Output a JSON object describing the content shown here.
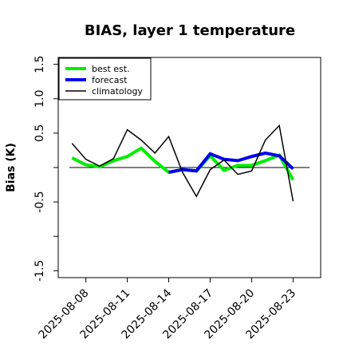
{
  "chart_data": {
    "type": "line",
    "title": "BIAS, layer 1 temperature",
    "xlabel": "",
    "ylabel": "Bias (K)",
    "ylim": [
      -1.6,
      1.6
    ],
    "yticks": [
      -1.5,
      -1.0,
      -0.5,
      0.0,
      0.5,
      1.0,
      1.5
    ],
    "ytick_labels": [
      "-1.5",
      "",
      "-0.5",
      "",
      "0.5",
      "1.0",
      "1.5"
    ],
    "xlim": [
      0,
      19
    ],
    "xticks": [
      {
        "pos": 2,
        "label": "2025-08-08",
        "color": "#000000"
      },
      {
        "pos": 5,
        "label": "2025-08-11",
        "color": "#000000"
      },
      {
        "pos": 8,
        "label": "2025-08-14",
        "color": "#228B22"
      },
      {
        "pos": 11,
        "label": "2025-08-17",
        "color": "#000000"
      },
      {
        "pos": 14,
        "label": "2025-08-20",
        "color": "#000000"
      },
      {
        "pos": 17,
        "label": "2025-08-23",
        "color": "#000000"
      }
    ],
    "series": [
      {
        "name": "best est.",
        "color": "#00ee00",
        "width": 4,
        "x": [
          1,
          2,
          3,
          4,
          5,
          6,
          7,
          8,
          9,
          10,
          11,
          12,
          13,
          14,
          15,
          16,
          17
        ],
        "values": [
          0.14,
          0.04,
          0.01,
          0.1,
          0.16,
          0.28,
          0.09,
          -0.07,
          -0.03,
          -0.05,
          0.17,
          -0.04,
          0.03,
          0.03,
          0.1,
          0.18,
          -0.18
        ]
      },
      {
        "name": "forecast",
        "color": "#0000ee",
        "width": 4,
        "x": [
          8,
          9,
          10,
          11,
          12,
          13,
          14,
          15,
          16,
          17
        ],
        "values": [
          -0.07,
          -0.03,
          -0.05,
          0.2,
          0.12,
          0.1,
          0.16,
          0.21,
          0.17,
          -0.02
        ]
      },
      {
        "name": "climatology",
        "color": "#000000",
        "width": 1.5,
        "x": [
          1,
          2,
          3,
          4,
          5,
          6,
          7,
          8,
          9,
          10,
          11,
          12,
          13,
          14,
          15,
          16,
          17
        ],
        "values": [
          0.35,
          0.12,
          0.02,
          0.13,
          0.55,
          0.4,
          0.21,
          0.45,
          -0.07,
          -0.42,
          -0.03,
          0.11,
          -0.1,
          -0.05,
          0.4,
          0.61,
          -0.49
        ]
      }
    ],
    "zero_line": true,
    "legend_position": "upper-left",
    "grid": false
  }
}
